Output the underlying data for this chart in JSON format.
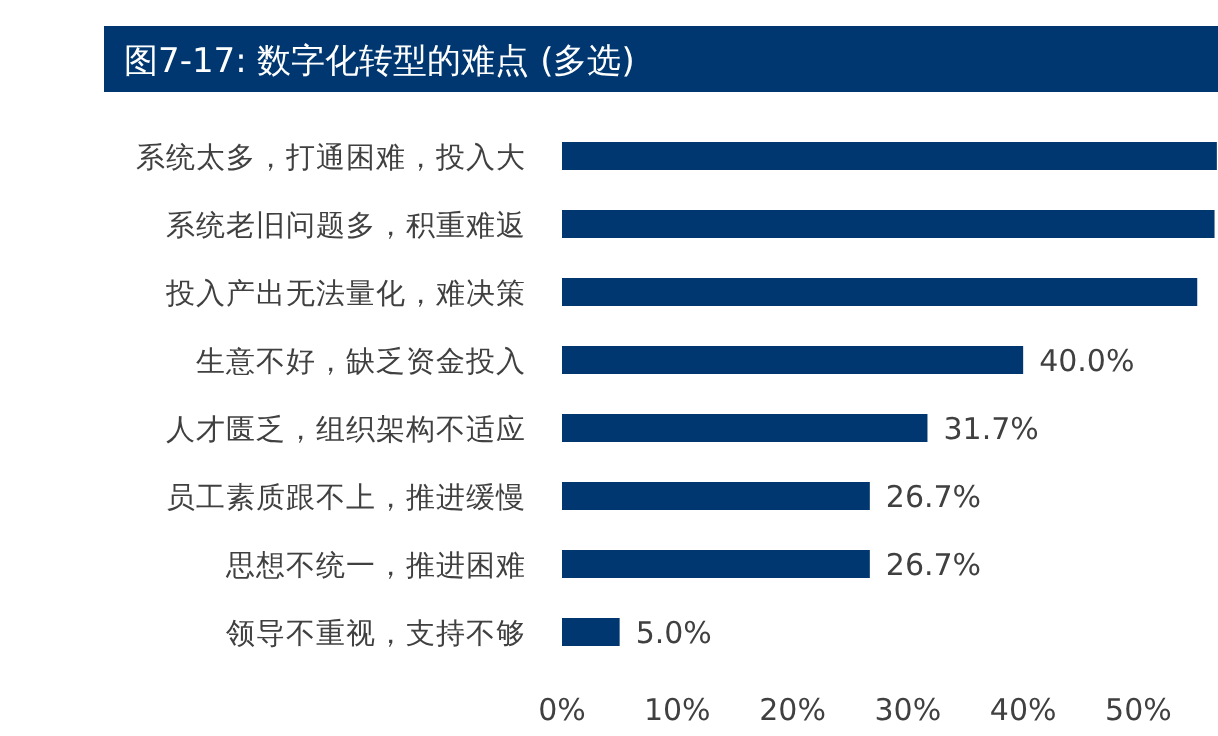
{
  "chart_data": {
    "type": "bar",
    "orientation": "horizontal",
    "title": "图7-17: 数字化转型的难点 (多选)",
    "categories": [
      "系统太多，打通困难，投入大",
      "系统老旧问题多，积重难返",
      "投入产出无法量化，难决策",
      "生意不好，缺乏资金投入",
      "人才匮乏，组织架构不适应",
      "员工素质跟不上，推进缓慢",
      "思想不统一，推进困难",
      "领导不重视，支持不够"
    ],
    "values": [
      56.8,
      56.6,
      55.1,
      40.0,
      31.7,
      26.7,
      26.7,
      5.0
    ],
    "value_labels": [
      null,
      null,
      null,
      "40.0%",
      "31.7%",
      "26.7%",
      "26.7%",
      "5.0%"
    ],
    "color": "#003770",
    "xlim": [
      0,
      56.9
    ],
    "xticks": [
      {
        "value": 0,
        "label": "0%"
      },
      {
        "value": 10,
        "label": "10%"
      },
      {
        "value": 20,
        "label": "20%"
      },
      {
        "value": 30,
        "label": "30%"
      },
      {
        "value": 40,
        "label": "40%"
      },
      {
        "value": 50,
        "label": "50%"
      }
    ],
    "grid": false
  }
}
